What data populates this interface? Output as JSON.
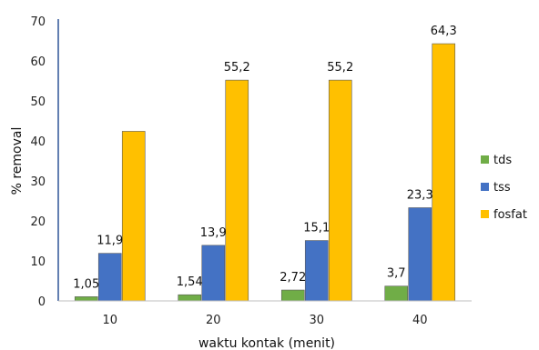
{
  "chart_data": {
    "type": "bar",
    "categories": [
      "10",
      "20",
      "30",
      "40"
    ],
    "series": [
      {
        "name": "tds",
        "values": [
          1.05,
          1.54,
          2.72,
          3.7
        ],
        "labels": [
          "1,05",
          "1,54",
          "2,72",
          "3,7"
        ],
        "color": "#70ad47"
      },
      {
        "name": "tss",
        "values": [
          11.9,
          13.9,
          15.1,
          23.3
        ],
        "labels": [
          "11,9",
          "13,9",
          "15,1",
          "23,3"
        ],
        "color": "#4472c4"
      },
      {
        "name": "fosfat",
        "values": [
          42.4,
          55.2,
          55.2,
          64.3
        ],
        "labels": [
          "",
          "55,2",
          "55,2",
          "64,3"
        ],
        "color": "#ffc000"
      }
    ],
    "xlabel": "waktu kontak (menit)",
    "ylabel": "% removal",
    "ylim": [
      0,
      70
    ],
    "yticks": [
      "0",
      "10",
      "20",
      "30",
      "40",
      "50",
      "60",
      "70"
    ],
    "grid": false,
    "legend": "right"
  }
}
